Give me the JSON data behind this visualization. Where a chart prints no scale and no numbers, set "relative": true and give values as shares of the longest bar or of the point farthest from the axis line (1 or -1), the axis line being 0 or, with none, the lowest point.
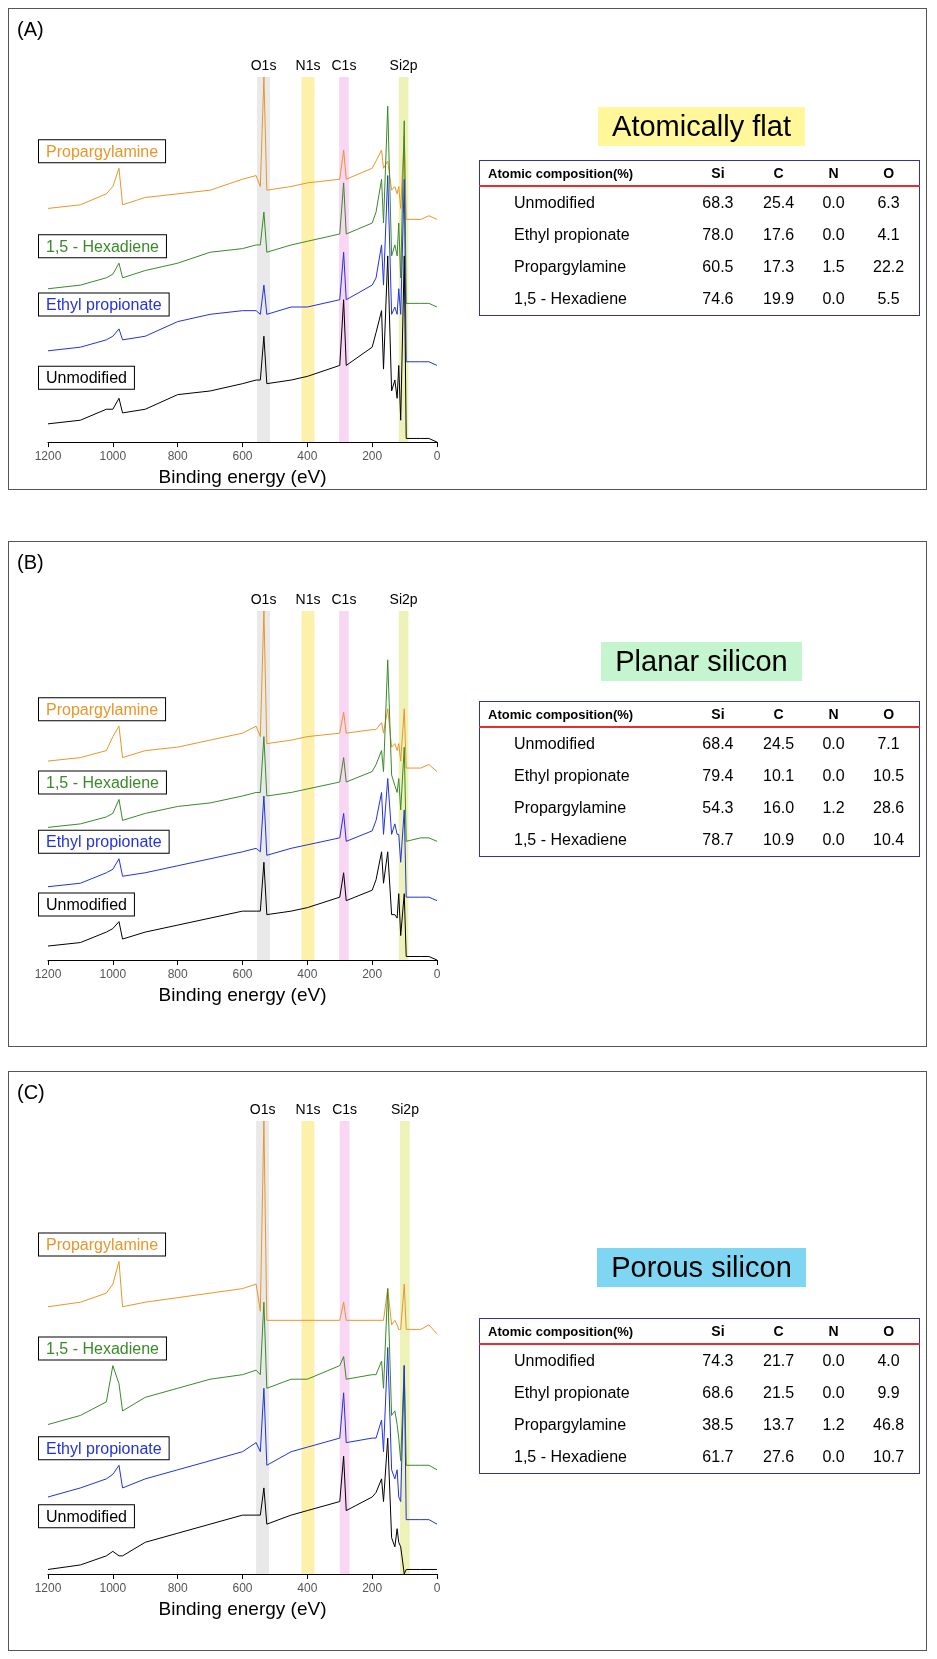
{
  "chart_data": [
    {
      "type": "line",
      "relative": true,
      "annotations": [
        "(A)"
      ],
      "xlabel": "Binding energy (eV)",
      "xlim": [
        1200,
        0
      ],
      "xticks": [
        1200,
        1000,
        800,
        600,
        400,
        200,
        0
      ],
      "x": [
        1200,
        1100,
        1020,
        1000,
        981,
        970,
        900,
        800,
        700,
        600,
        558,
        545,
        534,
        525,
        450,
        400,
        300,
        288,
        280,
        200,
        188,
        171,
        165,
        152,
        140,
        130,
        123,
        118,
        112,
        101,
        95,
        50,
        25,
        0
      ],
      "series": [
        {
          "name": "Propargylamine",
          "color": "#e8962a",
          "values": [
            0.64,
            0.65,
            0.68,
            0.7,
            0.75,
            0.65,
            0.67,
            0.68,
            0.69,
            0.72,
            0.73,
            0.7,
            1.0,
            0.69,
            0.7,
            0.71,
            0.72,
            0.8,
            0.72,
            0.75,
            0.77,
            0.8,
            0.75,
            0.77,
            0.69,
            0.7,
            0.68,
            0.7,
            0.64,
            0.84,
            0.61,
            0.61,
            0.62,
            0.61
          ]
        },
        {
          "name": "1,5 - Hexadiene",
          "color": "#3a8a2a",
          "values": [
            0.42,
            0.43,
            0.45,
            0.46,
            0.49,
            0.45,
            0.47,
            0.49,
            0.52,
            0.53,
            0.54,
            0.54,
            0.63,
            0.52,
            0.54,
            0.55,
            0.57,
            0.71,
            0.57,
            0.6,
            0.63,
            0.72,
            0.6,
            0.92,
            0.51,
            0.54,
            0.51,
            0.6,
            0.45,
            0.88,
            0.38,
            0.38,
            0.38,
            0.37
          ]
        },
        {
          "name": "Ethyl propionate",
          "color": "#2233dd",
          "values": [
            0.25,
            0.26,
            0.28,
            0.29,
            0.31,
            0.28,
            0.29,
            0.33,
            0.35,
            0.36,
            0.36,
            0.35,
            0.43,
            0.35,
            0.37,
            0.37,
            0.39,
            0.52,
            0.39,
            0.43,
            0.45,
            0.54,
            0.43,
            0.73,
            0.35,
            0.37,
            0.35,
            0.42,
            0.35,
            0.72,
            0.22,
            0.22,
            0.22,
            0.21
          ]
        },
        {
          "name": "Unmodified",
          "color": "#000000",
          "values": [
            0.05,
            0.06,
            0.09,
            0.09,
            0.12,
            0.08,
            0.09,
            0.13,
            0.14,
            0.16,
            0.17,
            0.17,
            0.29,
            0.16,
            0.17,
            0.18,
            0.21,
            0.39,
            0.21,
            0.26,
            0.3,
            0.36,
            0.2,
            0.51,
            0.14,
            0.17,
            0.12,
            0.21,
            0.06,
            0.51,
            0.01,
            0.01,
            0.01,
            0
          ]
        }
      ],
      "bands": [
        {
          "axis": "x",
          "from": 515,
          "to": 555,
          "label": "O1s",
          "color": "#e9e9e9"
        },
        {
          "axis": "x",
          "from": 378,
          "to": 418,
          "label": "N1s",
          "color": "#fcf0aa"
        },
        {
          "axis": "x",
          "from": 272,
          "to": 302,
          "label": "C1s",
          "color": "#fad6f5"
        },
        {
          "axis": "x",
          "from": 88,
          "to": 118,
          "label": "Si2p",
          "color": "#eef2b8"
        }
      ]
    },
    {
      "type": "other",
      "title": "Atomically flat",
      "ylabel": "Atomic composition(%)",
      "categories": [
        "Unmodified",
        "Ethyl propionate",
        "Propargylamine",
        "1,5 - Hexadiene"
      ],
      "data_labels": true,
      "series": [
        {
          "name": "Si",
          "values": [
            68.3,
            78.0,
            60.5,
            74.6
          ],
          "value_labels": [
            "68.3",
            "78.0",
            "60.5",
            "74.6"
          ]
        },
        {
          "name": "C",
          "values": [
            25.4,
            17.6,
            17.3,
            19.9
          ],
          "value_labels": [
            "25.4",
            "17.6",
            "17.3",
            "19.9"
          ]
        },
        {
          "name": "N",
          "values": [
            0.0,
            0.0,
            1.5,
            0.0
          ],
          "value_labels": [
            "0.0",
            "0.0",
            "1.5",
            "0.0"
          ]
        },
        {
          "name": "O",
          "values": [
            6.3,
            4.1,
            22.2,
            5.5
          ],
          "value_labels": [
            "6.3",
            "4.1",
            "22.2",
            "5.5"
          ]
        }
      ]
    },
    {
      "type": "line",
      "relative": true,
      "annotations": [
        "(B)"
      ],
      "xlabel": "Binding energy (eV)",
      "xlim": [
        1200,
        0
      ],
      "xticks": [
        1200,
        1000,
        800,
        600,
        400,
        200,
        0
      ],
      "x": [
        1200,
        1100,
        1020,
        1000,
        981,
        970,
        900,
        800,
        700,
        600,
        558,
        545,
        534,
        525,
        450,
        400,
        300,
        288,
        280,
        200,
        188,
        171,
        165,
        152,
        140,
        130,
        123,
        118,
        112,
        101,
        95,
        50,
        25,
        0
      ],
      "series": [
        {
          "name": "Propargylamine",
          "color": "#e8962a",
          "values": [
            0.57,
            0.58,
            0.6,
            0.64,
            0.67,
            0.58,
            0.6,
            0.61,
            0.63,
            0.65,
            0.67,
            0.64,
            1.0,
            0.62,
            0.63,
            0.64,
            0.65,
            0.71,
            0.65,
            0.66,
            0.66,
            0.68,
            0.65,
            0.72,
            0.61,
            0.62,
            0.6,
            0.62,
            0.57,
            0.72,
            0.55,
            0.55,
            0.56,
            0.54
          ]
        },
        {
          "name": "1,5 - Hexadiene",
          "color": "#3a8a2a",
          "values": [
            0.38,
            0.39,
            0.41,
            0.42,
            0.46,
            0.4,
            0.42,
            0.44,
            0.45,
            0.47,
            0.48,
            0.48,
            0.64,
            0.47,
            0.48,
            0.49,
            0.51,
            0.58,
            0.51,
            0.54,
            0.56,
            0.6,
            0.54,
            0.86,
            0.53,
            0.5,
            0.48,
            0.52,
            0.43,
            0.61,
            0.34,
            0.35,
            0.35,
            0.34
          ]
        },
        {
          "name": "Ethyl propionate",
          "color": "#2233dd",
          "values": [
            0.21,
            0.22,
            0.25,
            0.26,
            0.29,
            0.24,
            0.25,
            0.27,
            0.29,
            0.31,
            0.32,
            0.31,
            0.47,
            0.3,
            0.32,
            0.33,
            0.35,
            0.42,
            0.34,
            0.37,
            0.4,
            0.48,
            0.36,
            0.52,
            0.36,
            0.39,
            0.36,
            0.36,
            0.28,
            0.43,
            0.18,
            0.18,
            0.18,
            0.17
          ]
        },
        {
          "name": "Unmodified",
          "color": "#000000",
          "values": [
            0.04,
            0.05,
            0.08,
            0.09,
            0.11,
            0.06,
            0.08,
            0.1,
            0.12,
            0.14,
            0.14,
            0.14,
            0.28,
            0.13,
            0.14,
            0.15,
            0.18,
            0.25,
            0.17,
            0.2,
            0.23,
            0.31,
            0.22,
            0.31,
            0.13,
            0.13,
            0.12,
            0.19,
            0.07,
            0.19,
            0.01,
            0.01,
            0.01,
            0
          ]
        }
      ],
      "bands": [
        {
          "axis": "x",
          "from": 515,
          "to": 555,
          "label": "O1s",
          "color": "#e9e9e9"
        },
        {
          "axis": "x",
          "from": 378,
          "to": 418,
          "label": "N1s",
          "color": "#fcf0aa"
        },
        {
          "axis": "x",
          "from": 272,
          "to": 302,
          "label": "C1s",
          "color": "#fad6f5"
        },
        {
          "axis": "x",
          "from": 88,
          "to": 118,
          "label": "Si2p",
          "color": "#eef2b8"
        }
      ]
    },
    {
      "type": "other",
      "title": "Planar silicon",
      "ylabel": "Atomic composition(%)",
      "categories": [
        "Unmodified",
        "Ethyl propionate",
        "Propargylamine",
        "1,5 - Hexadiene"
      ],
      "data_labels": true,
      "series": [
        {
          "name": "Si",
          "values": [
            68.4,
            79.4,
            54.3,
            78.7
          ],
          "value_labels": [
            "68.4",
            "79.4",
            "54.3",
            "78.7"
          ]
        },
        {
          "name": "C",
          "values": [
            24.5,
            10.1,
            16.0,
            10.9
          ],
          "value_labels": [
            "24.5",
            "10.1",
            "16.0",
            "10.9"
          ]
        },
        {
          "name": "N",
          "values": [
            0.0,
            0.0,
            1.2,
            0.0
          ],
          "value_labels": [
            "0.0",
            "0.0",
            "1.2",
            "0.0"
          ]
        },
        {
          "name": "O",
          "values": [
            7.1,
            10.5,
            28.6,
            10.4
          ],
          "value_labels": [
            "7.1",
            "10.5",
            "28.6",
            "10.4"
          ]
        }
      ]
    },
    {
      "type": "line",
      "relative": true,
      "annotations": [
        "(C)"
      ],
      "xlabel": "Binding energy (eV)",
      "xlim": [
        1200,
        0
      ],
      "xticks": [
        1200,
        1000,
        800,
        600,
        400,
        200,
        0
      ],
      "x": [
        1200,
        1100,
        1020,
        1000,
        981,
        970,
        900,
        800,
        700,
        600,
        558,
        545,
        534,
        525,
        450,
        400,
        300,
        288,
        280,
        200,
        188,
        171,
        165,
        152,
        140,
        130,
        123,
        118,
        112,
        101,
        95,
        50,
        25,
        0
      ],
      "series": [
        {
          "name": "Propargylamine",
          "color": "#e8962a",
          "values": [
            0.59,
            0.6,
            0.62,
            0.64,
            0.69,
            0.59,
            0.6,
            0.61,
            0.62,
            0.63,
            0.64,
            0.58,
            1.0,
            0.56,
            0.56,
            0.56,
            0.56,
            0.6,
            0.56,
            0.56,
            0.56,
            0.56,
            0.56,
            0.63,
            0.55,
            0.56,
            0.55,
            0.54,
            0.54,
            0.64,
            0.54,
            0.54,
            0.55,
            0.53
          ]
        },
        {
          "name": "1,5 - Hexadiene",
          "color": "#3a8a2a",
          "values": [
            0.33,
            0.35,
            0.38,
            0.46,
            0.42,
            0.36,
            0.39,
            0.41,
            0.43,
            0.44,
            0.45,
            0.44,
            0.6,
            0.41,
            0.43,
            0.43,
            0.46,
            0.48,
            0.43,
            0.44,
            0.44,
            0.47,
            0.41,
            0.63,
            0.35,
            0.36,
            0.33,
            0.3,
            0.25,
            0.46,
            0.24,
            0.24,
            0.24,
            0.23
          ]
        },
        {
          "name": "Ethyl propionate",
          "color": "#2233dd",
          "values": [
            0.17,
            0.19,
            0.21,
            0.22,
            0.24,
            0.19,
            0.21,
            0.23,
            0.25,
            0.27,
            0.29,
            0.27,
            0.41,
            0.24,
            0.27,
            0.28,
            0.3,
            0.4,
            0.29,
            0.3,
            0.3,
            0.34,
            0.27,
            0.5,
            0.23,
            0.21,
            0.23,
            0.17,
            0.16,
            0.46,
            0.12,
            0.12,
            0.12,
            0.11
          ]
        },
        {
          "name": "Unmodified",
          "color": "#000000",
          "values": [
            0.01,
            0.02,
            0.04,
            0.05,
            0.04,
            0.04,
            0.07,
            0.09,
            0.11,
            0.13,
            0.13,
            0.13,
            0.19,
            0.11,
            0.13,
            0.14,
            0.16,
            0.26,
            0.14,
            0.17,
            0.18,
            0.21,
            0.16,
            0.3,
            0.08,
            0.06,
            0.1,
            0.07,
            0.06,
            0,
            0.01,
            0.01,
            0.01,
            0.01
          ]
        }
      ],
      "bands": [
        {
          "axis": "x",
          "from": 518,
          "to": 558,
          "label": "O1s",
          "color": "#e9e9e9"
        },
        {
          "axis": "x",
          "from": 378,
          "to": 418,
          "label": "N1s",
          "color": "#fcf0aa"
        },
        {
          "axis": "x",
          "from": 270,
          "to": 300,
          "label": "C1s",
          "color": "#fad6f5"
        },
        {
          "axis": "x",
          "from": 84,
          "to": 114,
          "label": "Si2p",
          "color": "#eef2b8"
        }
      ]
    },
    {
      "type": "other",
      "title": "Porous silicon",
      "ylabel": "Atomic composition(%)",
      "categories": [
        "Unmodified",
        "Ethyl propionate",
        "Propargylamine",
        "1,5 - Hexadiene"
      ],
      "data_labels": true,
      "series": [
        {
          "name": "Si",
          "values": [
            74.3,
            68.6,
            38.5,
            61.7
          ],
          "value_labels": [
            "74.3",
            "68.6",
            "38.5",
            "61.7"
          ]
        },
        {
          "name": "C",
          "values": [
            21.7,
            21.5,
            13.7,
            27.6
          ],
          "value_labels": [
            "21.7",
            "21.5",
            "13.7",
            "27.6"
          ]
        },
        {
          "name": "N",
          "values": [
            0.0,
            0.0,
            1.2,
            0.0
          ],
          "value_labels": [
            "0.0",
            "0.0",
            "1.2",
            "0.0"
          ]
        },
        {
          "name": "O",
          "values": [
            4.0,
            9.9,
            46.8,
            10.7
          ],
          "value_labels": [
            "4.0",
            "9.9",
            "46.8",
            "10.7"
          ]
        }
      ]
    }
  ]
}
